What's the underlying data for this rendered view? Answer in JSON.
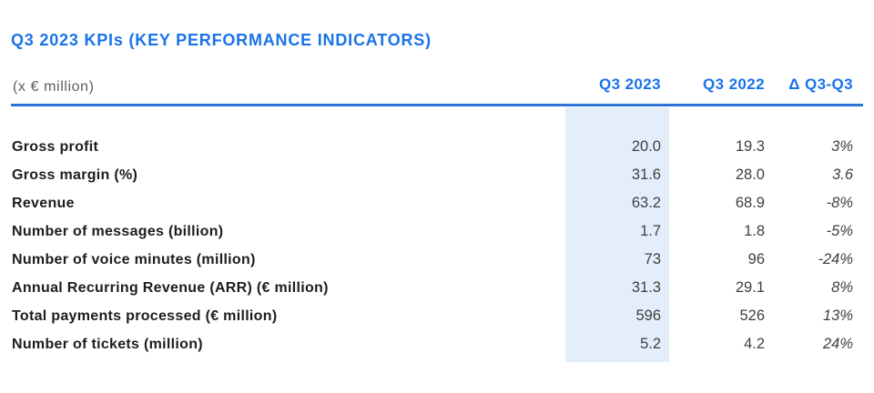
{
  "title": "Q3 2023 KPIs (KEY PERFORMANCE INDICATORS)",
  "table": {
    "unit_label": "(x € million)",
    "columns": {
      "col1": "Q3 2023",
      "col2": "Q3 2022",
      "col3": "Δ Q3-Q3"
    },
    "rows": [
      {
        "label": "Gross profit",
        "q3_2023": "20.0",
        "q3_2022": "19.3",
        "delta": "3%"
      },
      {
        "label": "Gross margin (%)",
        "q3_2023": "31.6",
        "q3_2022": "28.0",
        "delta": "3.6"
      },
      {
        "label": "Revenue",
        "q3_2023": "63.2",
        "q3_2022": "68.9",
        "delta": "-8%"
      },
      {
        "label": "Number of messages (billion)",
        "q3_2023": "1.7",
        "q3_2022": "1.8",
        "delta": "-5%"
      },
      {
        "label": "Number of voice minutes (million)",
        "q3_2023": "73",
        "q3_2022": "96",
        "delta": "-24%"
      },
      {
        "label": "Annual Recurring Revenue (ARR) (€ million)",
        "q3_2023": "31.3",
        "q3_2022": "29.1",
        "delta": "8%"
      },
      {
        "label": "Total payments processed (€ million)",
        "q3_2023": "596",
        "q3_2022": "526",
        "delta": "13%"
      },
      {
        "label": "Number of tickets (million)",
        "q3_2023": "5.2",
        "q3_2022": "4.2",
        "delta": "24%"
      }
    ]
  },
  "colors": {
    "accent_blue": "#1a73e8",
    "rule_blue": "#2e74d8",
    "highlight_band": "#e4eefb",
    "label_text": "#1d1d1f",
    "value_text": "#3d3f42",
    "unit_text": "#5b5f66"
  }
}
